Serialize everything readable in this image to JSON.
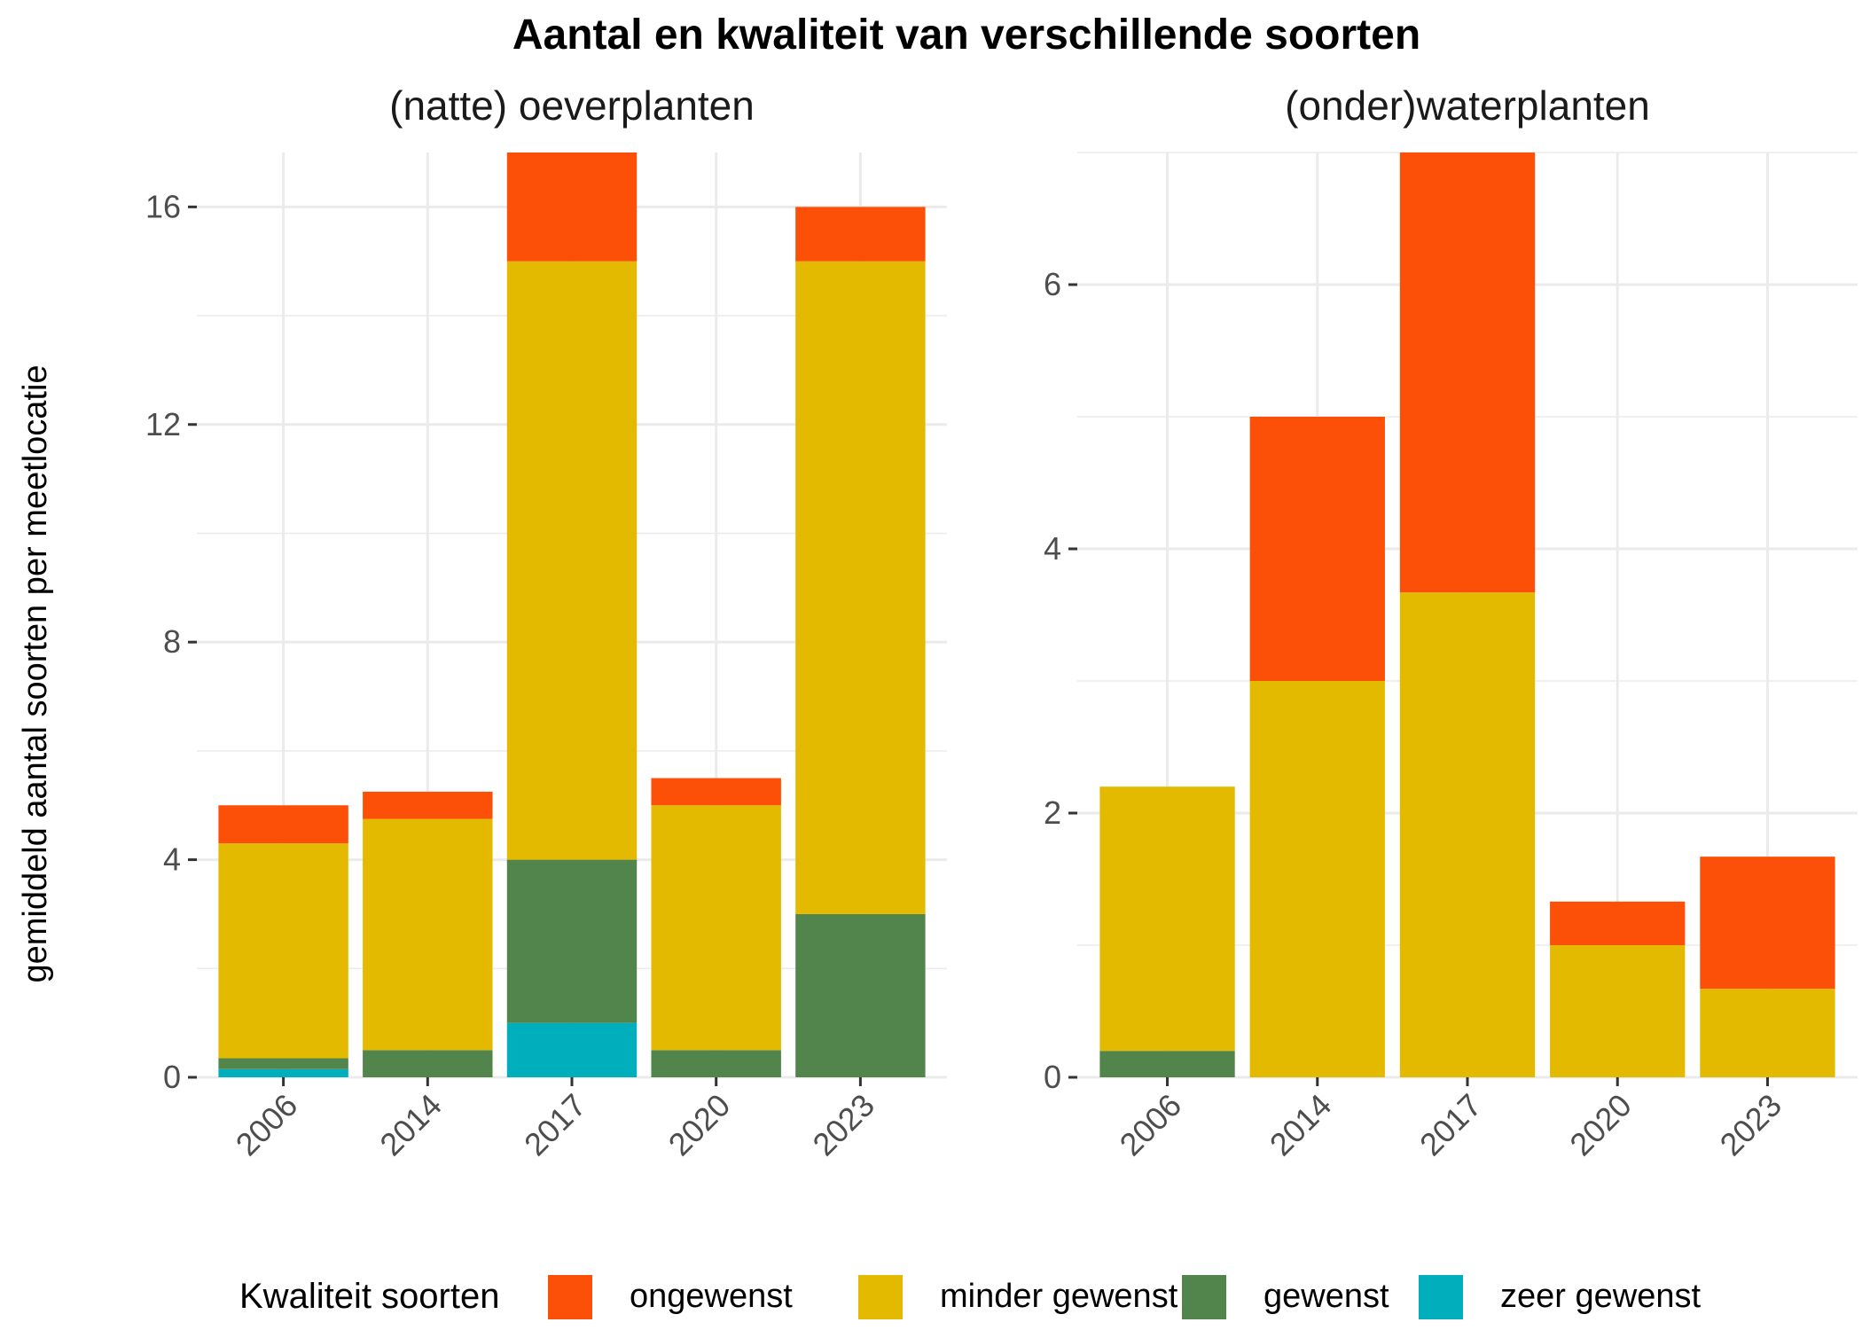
{
  "chart_data": {
    "type": "bar",
    "stacked": true,
    "title": "Aantal en kwaliteit van verschillende soorten",
    "ylabel": "gemiddeld aantal soorten per meetlocatie",
    "legend": {
      "title": "Kwaliteit soorten",
      "position": "bottom",
      "items": [
        {
          "label": "ongewenst",
          "color": "#FC4F08"
        },
        {
          "label": "minder gewenst",
          "color": "#E3BA00"
        },
        {
          "label": "gewenst",
          "color": "#52854C"
        },
        {
          "label": "zeer gewenst",
          "color": "#00AFBB"
        }
      ]
    },
    "panels": [
      {
        "title": "(natte) oeverplanten",
        "categories": [
          "2006",
          "2014",
          "2017",
          "2020",
          "2023"
        ],
        "ylim": [
          0,
          17
        ],
        "yticks": [
          0,
          4,
          8,
          12,
          16
        ],
        "grid": true,
        "series": [
          {
            "name": "zeer gewenst",
            "color": "#00AFBB",
            "values": [
              0.15,
              0,
              1,
              0,
              0
            ]
          },
          {
            "name": "gewenst",
            "color": "#52854C",
            "values": [
              0.2,
              0.5,
              3,
              0.5,
              3
            ]
          },
          {
            "name": "minder gewenst",
            "color": "#E3BA00",
            "values": [
              3.95,
              4.25,
              11,
              4.5,
              12
            ]
          },
          {
            "name": "ongewenst",
            "color": "#FC4F08",
            "values": [
              0.7,
              0.5,
              2.1,
              0.5,
              1
            ]
          }
        ]
      },
      {
        "title": "(onder)waterplanten",
        "categories": [
          "2006",
          "2014",
          "2017",
          "2020",
          "2023"
        ],
        "ylim": [
          0,
          7
        ],
        "yticks": [
          0,
          2,
          4,
          6
        ],
        "grid": true,
        "series": [
          {
            "name": "zeer gewenst",
            "color": "#00AFBB",
            "values": [
              0,
              0,
              0,
              0,
              0
            ]
          },
          {
            "name": "gewenst",
            "color": "#52854C",
            "values": [
              0.2,
              0,
              0,
              0,
              0
            ]
          },
          {
            "name": "minder gewenst",
            "color": "#E3BA00",
            "values": [
              2,
              3,
              3.67,
              1,
              0.67
            ]
          },
          {
            "name": "ongewenst",
            "color": "#FC4F08",
            "values": [
              0,
              2,
              3.4,
              0.33,
              1
            ]
          }
        ]
      }
    ]
  }
}
